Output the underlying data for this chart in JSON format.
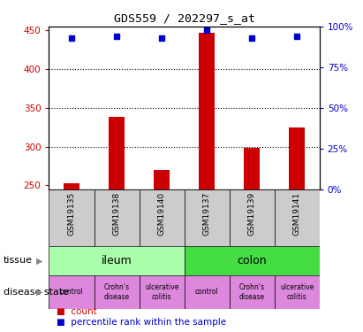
{
  "title": "GDS559 / 202297_s_at",
  "samples": [
    "GSM19135",
    "GSM19138",
    "GSM19140",
    "GSM19137",
    "GSM19139",
    "GSM19141"
  ],
  "counts": [
    253,
    338,
    270,
    447,
    298,
    325
  ],
  "percentiles": [
    93,
    94,
    93,
    98,
    93,
    94
  ],
  "ylim_left": [
    245,
    455
  ],
  "ylim_right": [
    0,
    100
  ],
  "yticks_left": [
    250,
    300,
    350,
    400,
    450
  ],
  "yticks_right": [
    0,
    25,
    50,
    75,
    100
  ],
  "bar_color": "#cc0000",
  "dot_color": "#0000cc",
  "tissue_colors": [
    "#aaffaa",
    "#44dd44"
  ],
  "disease_color": "#dd88dd",
  "sample_bg_color": "#cccccc",
  "left_axis_color": "#cc0000",
  "right_axis_color": "#0000cc",
  "tissue_info": [
    [
      "ileum",
      0,
      3
    ],
    [
      "colon",
      3,
      6
    ]
  ],
  "disease_labels": [
    "control",
    "Crohn’s\ndisease",
    "ulcerative\ncolitis",
    "control",
    "Crohn’s\ndisease",
    "ulcerative\ncolitis"
  ]
}
